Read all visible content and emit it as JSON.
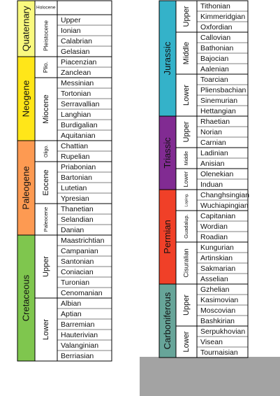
{
  "columns": [
    {
      "periods": [
        {
          "name": "Quaternary",
          "color": "#f9f97f",
          "epochs": [
            {
              "name": "Holocene",
              "stages": []
            },
            {
              "name": "Pleistocene",
              "stages": [
                "Upper",
                "Ionian",
                "Calabrian",
                "Gelasian"
              ]
            }
          ]
        },
        {
          "name": "Neogene",
          "color": "#ffe619",
          "epochs": [
            {
              "name": "Plio.",
              "stages": [
                "Piacenzian",
                "Zanclean"
              ]
            },
            {
              "name": "Miocene",
              "stages": [
                "Messinian",
                "Tortonian",
                "Serravallian",
                "Langhian",
                "Burdigalian",
                "Aquitanian"
              ]
            }
          ]
        },
        {
          "name": "Paleogene",
          "color": "#fd9a52",
          "epochs": [
            {
              "name": "Oligo.",
              "stages": [
                "Chattian",
                "Rupelian"
              ]
            },
            {
              "name": "Eocene",
              "stages": [
                "Priabonian",
                "Bartonian",
                "Lutetian",
                "Ypresian"
              ]
            },
            {
              "name": "Paleocene",
              "stages": [
                "Thanetian",
                "Selandian",
                "Danian"
              ]
            }
          ]
        },
        {
          "name": "Cretaceous",
          "color": "#7fc64e",
          "epochs": [
            {
              "name": "Upper",
              "stages": [
                "Maastrichtian",
                "Campanian",
                "Santonian",
                "Coniacian",
                "Turonian",
                "Cenomanian"
              ]
            },
            {
              "name": "Lower",
              "stages": [
                "Albian",
                "Aptian",
                "Barremian",
                "Hauterivian",
                "Valanginian",
                "Berriasian"
              ]
            }
          ]
        }
      ]
    },
    {
      "periods": [
        {
          "name": "Jurassic",
          "color": "#34b2c9",
          "epochs": [
            {
              "name": "Upper",
              "stages": [
                "Tithonian",
                "Kimmeridgian",
                "Oxfordian"
              ]
            },
            {
              "name": "Middle",
              "stages": [
                "Callovian",
                "Bathonian",
                "Bajocian",
                "Aalenian"
              ]
            },
            {
              "name": "Lower",
              "stages": [
                "Toarcian",
                "Pliensbachian",
                "Sinemurian",
                "Hettangian"
              ]
            }
          ]
        },
        {
          "name": "Triassic",
          "color": "#812b92",
          "epochs": [
            {
              "name": "Upper",
              "stages": [
                "Rhaetian",
                "Norian",
                "Carnian"
              ]
            },
            {
              "name": "Middle",
              "stages": [
                "Ladinian",
                "Anisian"
              ]
            },
            {
              "name": "Lower",
              "stages": [
                "Olenekian",
                "Induan"
              ]
            }
          ]
        },
        {
          "name": "Permian",
          "color": "#f04028",
          "epochs": [
            {
              "name": "Loping.",
              "stages": [
                "Changhsingian",
                "Wuchiapingian"
              ]
            },
            {
              "name": "Guadalup.",
              "stages": [
                "Capitanian",
                "Wordian",
                "Roadian"
              ]
            },
            {
              "name": "Cisuralian",
              "stages": [
                "Kungurian",
                "Artinskian",
                "Sakmarian",
                "Asselian"
              ]
            }
          ]
        },
        {
          "name": "Carboniferous",
          "color": "#67a599",
          "epochs": [
            {
              "name": "Upper",
              "stages": [
                "Gzhelian",
                "Kasimovian",
                "Moscovian",
                "Bashkirian"
              ]
            },
            {
              "name": "Lower",
              "stages": [
                "Serpukhovian",
                "Visean",
                "Tournaisian"
              ]
            }
          ]
        }
      ]
    }
  ]
}
